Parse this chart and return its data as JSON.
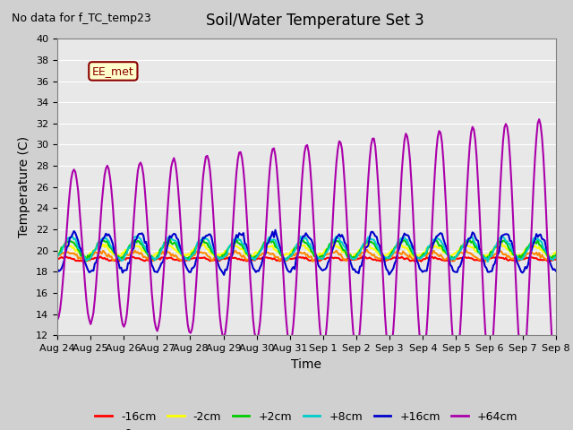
{
  "title": "Soil/Water Temperature Set 3",
  "xlabel": "Time",
  "ylabel": "Temperature (C)",
  "no_data_label": "No data for f_TC_temp23",
  "ee_met_label": "EE_met",
  "ylim": [
    12,
    40
  ],
  "yticks": [
    12,
    14,
    16,
    18,
    20,
    22,
    24,
    26,
    28,
    30,
    32,
    34,
    36,
    38,
    40
  ],
  "x_tick_labels": [
    "Aug 24",
    "Aug 25",
    "Aug 26",
    "Aug 27",
    "Aug 28",
    "Aug 29",
    "Aug 30",
    "Aug 31",
    "Sep 1",
    "Sep 2",
    "Sep 3",
    "Sep 4",
    "Sep 5",
    "Sep 6",
    "Sep 7",
    "Sep 8"
  ],
  "series": {
    "-16cm": {
      "color": "#ff0000",
      "lw": 1.5
    },
    "-8cm": {
      "color": "#ff8800",
      "lw": 1.5
    },
    "-2cm": {
      "color": "#ffff00",
      "lw": 1.5
    },
    "+2cm": {
      "color": "#00cc00",
      "lw": 1.5
    },
    "+8cm": {
      "color": "#00cccc",
      "lw": 1.5
    },
    "+16cm": {
      "color": "#0000cc",
      "lw": 1.5
    },
    "+64cm": {
      "color": "#aa00aa",
      "lw": 1.5
    }
  },
  "background_color": "#e8e8e8",
  "plot_bg_color": "#e8e8e8"
}
